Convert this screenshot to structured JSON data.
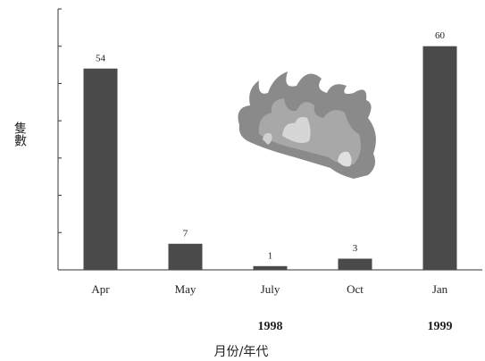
{
  "chart_data": {
    "type": "bar",
    "categories": [
      "Apr",
      "May",
      "July",
      "Oct",
      "Jan"
    ],
    "values": [
      54,
      7,
      1,
      3,
      60
    ],
    "color": "#4a4a4a",
    "ylim": [
      0,
      70
    ],
    "yticks": [
      0,
      10,
      20,
      30,
      40,
      50,
      60,
      70
    ],
    "y_label": "隻數",
    "x_label": "月份/年代",
    "annotations": [
      "1998",
      "1999"
    ]
  }
}
